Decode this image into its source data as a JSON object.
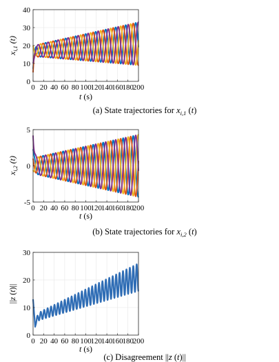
{
  "figure": {
    "panels": [
      {
        "caption": "(a) State trajectories for x",
        "caption_sub": "i,1",
        "caption_tail": " (t)",
        "ylabel": "x",
        "ylabel_sub": "i,1",
        "ylabel_tail": " (t)",
        "xlabel": "t (s)"
      },
      {
        "caption": "(b) State trajectories for x",
        "caption_sub": "i,2",
        "caption_tail": " (t)",
        "ylabel": "x",
        "ylabel_sub": "i,2",
        "ylabel_tail": " (t)",
        "xlabel": "t (s)"
      },
      {
        "caption": "(c) Disagreement ||z (t)||",
        "caption_sub": "",
        "caption_tail": "",
        "ylabel": "||z (t)||",
        "ylabel_sub": "",
        "ylabel_tail": "",
        "xlabel": "t (s)"
      }
    ]
  },
  "chart_data": [
    {
      "type": "line",
      "xlim": [
        0,
        200
      ],
      "ylim": [
        0,
        40
      ],
      "xticks": [
        0,
        20,
        40,
        60,
        80,
        100,
        120,
        140,
        160,
        180,
        200
      ],
      "yticks": [
        0,
        10,
        20,
        30,
        40
      ],
      "grid": true,
      "series_colors": [
        "#0072BD",
        "#D95319",
        "#EDB120",
        "#7E2F8E"
      ],
      "series": [
        {
          "x0": 0,
          "y0": 7,
          "offset": 17,
          "trend": 0.02,
          "amp0": 3,
          "amp_growth": 0.045,
          "period": 19,
          "phase": 0.0
        },
        {
          "x0": 0,
          "y0": 5,
          "offset": 17,
          "trend": 0.02,
          "amp0": 3,
          "amp_growth": 0.045,
          "period": 19,
          "phase": 1.57
        },
        {
          "x0": 0,
          "y0": 20,
          "offset": 17,
          "trend": 0.02,
          "amp0": 3,
          "amp_growth": 0.045,
          "period": 19,
          "phase": 3.14
        },
        {
          "x0": 0,
          "y0": 10,
          "offset": 17,
          "trend": 0.02,
          "amp0": 3,
          "amp_growth": 0.045,
          "period": 19,
          "phase": 4.71
        }
      ]
    },
    {
      "type": "line",
      "xlim": [
        0,
        200
      ],
      "ylim": [
        -5,
        5
      ],
      "xticks": [
        0,
        20,
        40,
        60,
        80,
        100,
        120,
        140,
        160,
        180,
        200
      ],
      "yticks": [
        -5,
        0,
        5
      ],
      "grid": true,
      "series_colors": [
        "#0072BD",
        "#D95319",
        "#EDB120",
        "#7E2F8E"
      ],
      "series": [
        {
          "x0": 0,
          "y0": 2.3,
          "offset": 0,
          "trend": 0,
          "amp0": 1.1,
          "amp_growth": 0.016,
          "period": 19,
          "phase": 1.57
        },
        {
          "x0": 0,
          "y0": 1.0,
          "offset": 0,
          "trend": 0,
          "amp0": 1.1,
          "amp_growth": 0.016,
          "period": 19,
          "phase": 3.14
        },
        {
          "x0": 0,
          "y0": -0.6,
          "offset": 0,
          "trend": 0,
          "amp0": 1.1,
          "amp_growth": 0.016,
          "period": 19,
          "phase": 4.71
        },
        {
          "x0": 0,
          "y0": 4.2,
          "offset": 0,
          "trend": 0,
          "amp0": 1.1,
          "amp_growth": 0.016,
          "period": 19,
          "phase": 0.0
        }
      ]
    },
    {
      "type": "line",
      "xlim": [
        0,
        200
      ],
      "ylim": [
        0,
        30
      ],
      "xticks": [
        0,
        20,
        40,
        60,
        80,
        100,
        120,
        140,
        160,
        180,
        200
      ],
      "yticks": [
        0,
        10,
        20,
        30
      ],
      "grid": true,
      "series_colors": [
        "#2F6DB5"
      ],
      "series": [
        {
          "x0": 0,
          "y0": 13,
          "dip_x": 4,
          "dip_y": 3,
          "trend_start": 6,
          "trend_end": 21,
          "amp0": 1.2,
          "amp_end": 5,
          "period": 6.5
        }
      ]
    }
  ]
}
